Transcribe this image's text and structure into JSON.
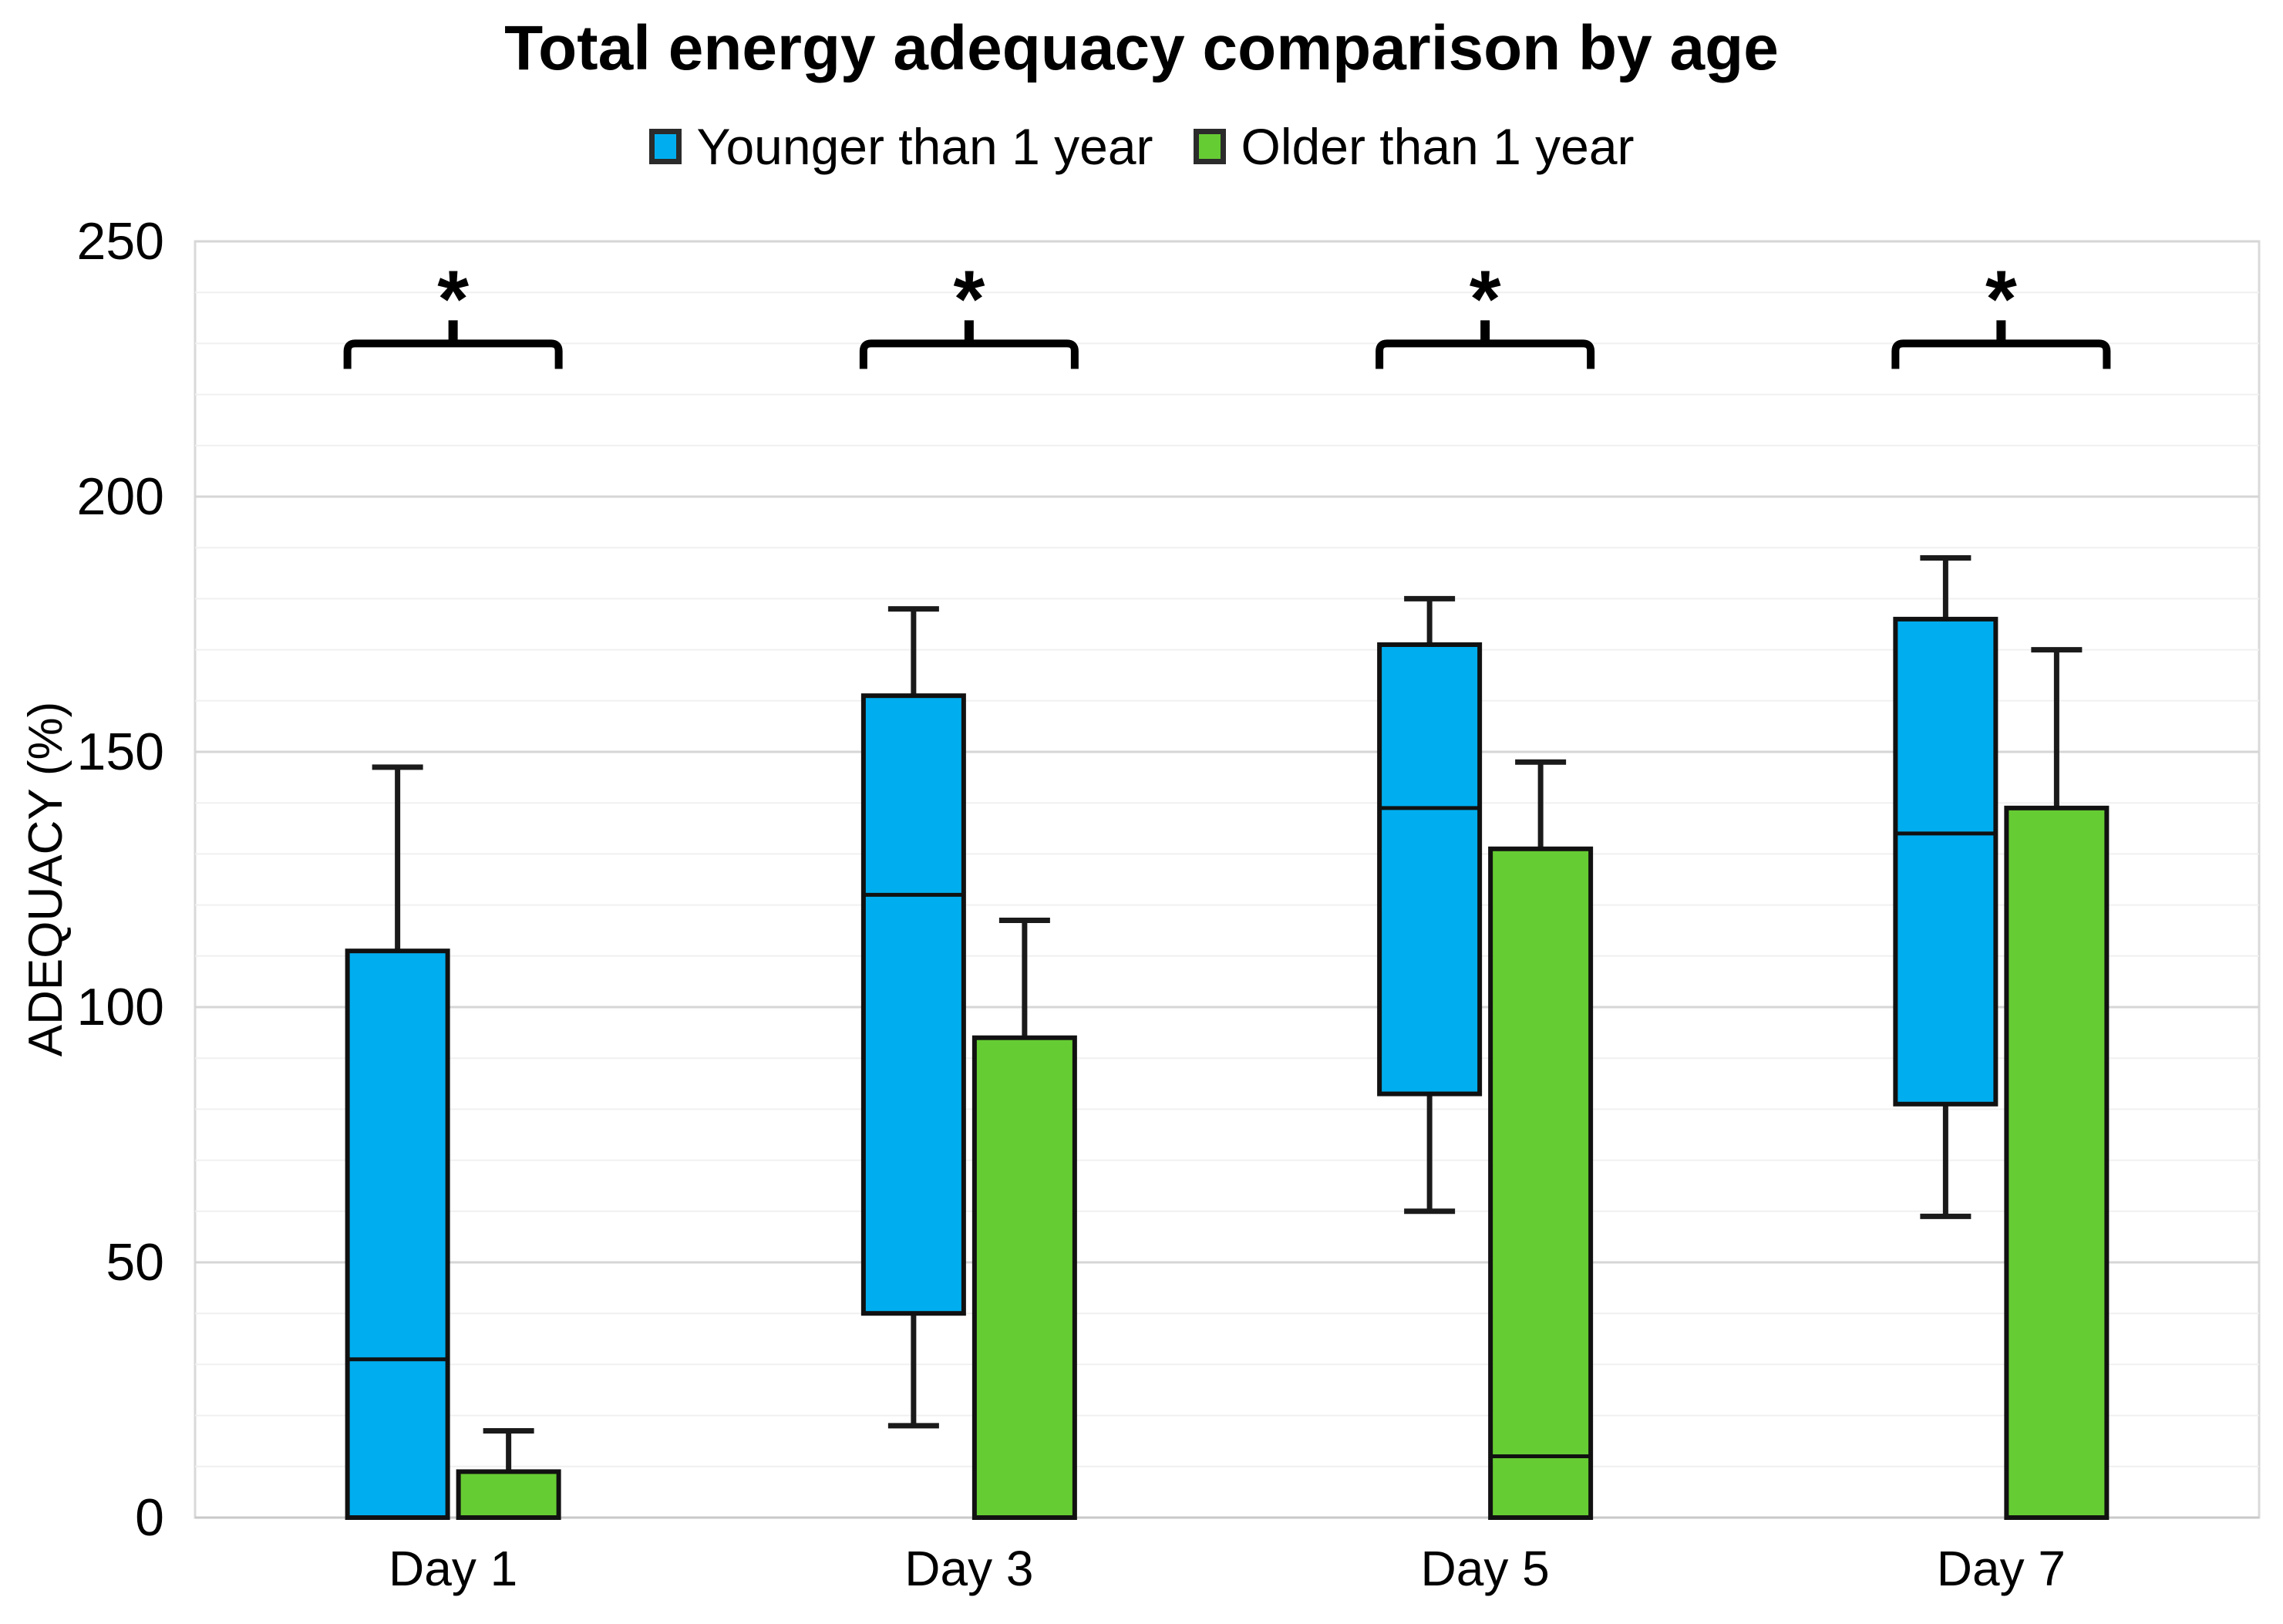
{
  "chart_data": {
    "type": "boxplot",
    "title": "Total energy adequacy comparison by age",
    "ylabel": "ADEQUACY (%)",
    "xlabel": "",
    "ylim": [
      0,
      250
    ],
    "y_major_ticks": [
      250,
      200,
      150,
      100,
      50,
      0
    ],
    "y_minor_step": 10,
    "grid": true,
    "legend_position": "top-center",
    "categories": [
      "Day 1",
      "Day 3",
      "Day 5",
      "Day 7"
    ],
    "series": [
      {
        "name": "Younger than 1 year",
        "color": "#00AEEF",
        "boxes": [
          {
            "category": "Day 1",
            "whisker_low": null,
            "q1": 0,
            "median": 31,
            "q3": 111,
            "whisker_high": 147
          },
          {
            "category": "Day 3",
            "whisker_low": 18,
            "q1": 40,
            "median": 122,
            "q3": 161,
            "whisker_high": 178
          },
          {
            "category": "Day 5",
            "whisker_low": 60,
            "q1": 83,
            "median": 139,
            "q3": 171,
            "whisker_high": 180
          },
          {
            "category": "Day 7",
            "whisker_low": 59,
            "q1": 81,
            "median": 134,
            "q3": 176,
            "whisker_high": 188
          }
        ]
      },
      {
        "name": "Older than 1 year",
        "color": "#66CC33",
        "boxes": [
          {
            "category": "Day 1",
            "whisker_low": null,
            "q1": 0,
            "median": null,
            "q3": 9,
            "whisker_high": 17
          },
          {
            "category": "Day 3",
            "whisker_low": null,
            "q1": 0,
            "median": null,
            "q3": 94,
            "whisker_high": 117
          },
          {
            "category": "Day 5",
            "whisker_low": null,
            "q1": 0,
            "median": 12,
            "q3": 131,
            "whisker_high": 148
          },
          {
            "category": "Day 7",
            "whisker_low": null,
            "q1": 0,
            "median": null,
            "q3": 139,
            "whisker_high": 170
          }
        ]
      }
    ],
    "significance": {
      "bar_value": 230,
      "markers": [
        {
          "category": "Day 1",
          "label": "*"
        },
        {
          "category": "Day 3",
          "label": "*"
        },
        {
          "category": "Day 5",
          "label": "*"
        },
        {
          "category": "Day 7",
          "label": "*"
        }
      ]
    },
    "colors": {
      "box_border": "#111111",
      "whisker": "#1a1a1a",
      "grid_major": "#d6d6d6",
      "grid_minor": "#f0f0f0",
      "axis_zero_line": "#c9c9c9",
      "plot_frame": "#d9d9d9",
      "text": "#000000",
      "significance_bracket": "#000000"
    }
  }
}
